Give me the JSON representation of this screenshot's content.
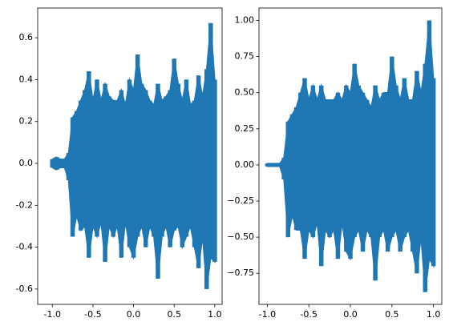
{
  "chart_data": [
    {
      "type": "envelope",
      "color": "#1f77b4",
      "x": [
        -1.0,
        -0.95,
        -0.9,
        -0.85,
        -0.8,
        -0.75,
        -0.7,
        -0.65,
        -0.6,
        -0.55,
        -0.5,
        -0.45,
        -0.4,
        -0.35,
        -0.3,
        -0.25,
        -0.2,
        -0.15,
        -0.1,
        -0.05,
        0.0,
        0.05,
        0.1,
        0.15,
        0.2,
        0.25,
        0.3,
        0.35,
        0.4,
        0.45,
        0.5,
        0.55,
        0.6,
        0.65,
        0.7,
        0.75,
        0.8,
        0.85,
        0.9,
        0.95,
        1.0
      ],
      "upper": [
        0.02,
        0.03,
        0.02,
        0.02,
        0.05,
        0.22,
        0.25,
        0.3,
        0.35,
        0.44,
        0.3,
        0.4,
        0.3,
        0.38,
        0.32,
        0.3,
        0.3,
        0.35,
        0.28,
        0.4,
        0.35,
        0.52,
        0.38,
        0.35,
        0.3,
        0.28,
        0.38,
        0.3,
        0.32,
        0.35,
        0.5,
        0.38,
        0.3,
        0.4,
        0.28,
        0.3,
        0.42,
        0.32,
        0.45,
        0.67,
        0.4
      ],
      "lower": [
        -0.02,
        -0.03,
        -0.02,
        -0.02,
        -0.08,
        -0.35,
        -0.25,
        -0.32,
        -0.3,
        -0.45,
        -0.3,
        -0.35,
        -0.28,
        -0.47,
        -0.3,
        -0.35,
        -0.3,
        -0.45,
        -0.28,
        -0.4,
        -0.45,
        -0.35,
        -0.3,
        -0.4,
        -0.3,
        -0.35,
        -0.55,
        -0.35,
        -0.3,
        -0.4,
        -0.32,
        -0.3,
        -0.4,
        -0.35,
        -0.3,
        -0.4,
        -0.5,
        -0.35,
        -0.6,
        -0.45,
        -0.47
      ],
      "xlim": [
        -1.18,
        1.09
      ],
      "ylim": [
        -0.673,
        0.742
      ],
      "xticks": [
        {
          "value": -1.0,
          "label": "-1.0"
        },
        -0.5,
        {
          "value": 0,
          "label": "0.0"
        },
        0.5,
        {
          "value": 1.0,
          "label": "1.0"
        }
      ],
      "yticks": [
        -0.6,
        -0.4,
        -0.2,
        {
          "value": 0,
          "label": "0.0"
        },
        0.2,
        0.4,
        0.6
      ]
    },
    {
      "type": "envelope",
      "color": "#1f77b4",
      "x": [
        -1.0,
        -0.95,
        -0.9,
        -0.85,
        -0.8,
        -0.75,
        -0.7,
        -0.65,
        -0.6,
        -0.55,
        -0.5,
        -0.45,
        -0.4,
        -0.35,
        -0.3,
        -0.25,
        -0.2,
        -0.15,
        -0.1,
        -0.05,
        0.0,
        0.05,
        0.1,
        0.15,
        0.2,
        0.25,
        0.3,
        0.35,
        0.4,
        0.45,
        0.5,
        0.55,
        0.6,
        0.65,
        0.7,
        0.75,
        0.8,
        0.85,
        0.9,
        0.95,
        1.0
      ],
      "upper": [
        0.01,
        0.01,
        0.01,
        0.01,
        0.05,
        0.3,
        0.35,
        0.4,
        0.5,
        0.6,
        0.45,
        0.55,
        0.45,
        0.55,
        0.45,
        0.45,
        0.45,
        0.5,
        0.45,
        0.55,
        0.5,
        0.7,
        0.55,
        0.5,
        0.45,
        0.4,
        0.55,
        0.45,
        0.5,
        0.5,
        0.75,
        0.55,
        0.45,
        0.6,
        0.45,
        0.45,
        0.65,
        0.5,
        0.7,
        1.0,
        0.6
      ],
      "lower": [
        -0.01,
        -0.01,
        -0.01,
        -0.01,
        -0.1,
        -0.5,
        -0.35,
        -0.45,
        -0.45,
        -0.65,
        -0.45,
        -0.5,
        -0.4,
        -0.7,
        -0.45,
        -0.5,
        -0.45,
        -0.65,
        -0.4,
        -0.6,
        -0.65,
        -0.5,
        -0.45,
        -0.6,
        -0.45,
        -0.5,
        -0.8,
        -0.5,
        -0.45,
        -0.6,
        -0.5,
        -0.45,
        -0.6,
        -0.5,
        -0.45,
        -0.6,
        -0.75,
        -0.5,
        -0.88,
        -0.65,
        -0.7
      ],
      "xlim": [
        -1.1,
        1.1
      ],
      "ylim": [
        -0.965,
        1.086
      ],
      "xticks": [
        {
          "value": -1.0,
          "label": "-1.0"
        },
        -0.5,
        {
          "value": 0,
          "label": "0.0"
        },
        0.5,
        {
          "value": 1.0,
          "label": "1.0"
        }
      ],
      "yticks": [
        {
          "value": -0.75,
          "label": "−0.75"
        },
        {
          "value": -0.5,
          "label": "−0.50"
        },
        {
          "value": -0.25,
          "label": "−0.25"
        },
        {
          "value": 0,
          "label": "0.00"
        },
        0.25,
        {
          "value": 0.5,
          "label": "0.50"
        },
        0.75,
        {
          "value": 1.0,
          "label": "1.00"
        }
      ]
    }
  ]
}
